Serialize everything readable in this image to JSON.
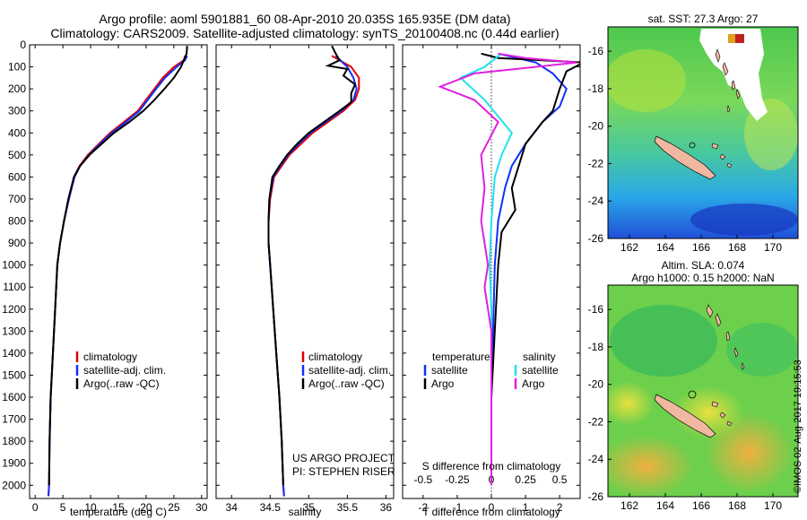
{
  "titles": {
    "line1": "Argo profile: aoml 5901881_60 08-Apr-2010 20.035S 165.935E (DM data)",
    "line2": "Climatology: CARS2009. Satellite-adjusted climatology: synTS_20100408.nc (0.44d earlier)"
  },
  "credits": {
    "project": "US ARGO PROJECT",
    "pi": "PI: STEPHEN RISER",
    "stamp": "©IMOS 02-Aug-2017 19:15:53"
  },
  "colors": {
    "climatology": "#e00000",
    "satellite": "#1030ff",
    "argo": "#000000",
    "sat_salinity": "#20e0f0",
    "argo_salinity": "#e020e0"
  },
  "chart_data": [
    {
      "type": "line",
      "id": "temperature",
      "xlabel": "temperature (deg C)",
      "xlim": [
        -1,
        31
      ],
      "xticks": [
        0,
        5,
        10,
        15,
        20,
        25,
        30
      ],
      "ylim": [
        0,
        2060
      ],
      "yticks": [
        0,
        100,
        200,
        300,
        400,
        500,
        600,
        700,
        800,
        900,
        1000,
        1100,
        1200,
        1300,
        1400,
        1500,
        1600,
        1700,
        1800,
        1900,
        2000
      ],
      "legend": [
        "climatology",
        "satellite-adj. clim.",
        "Argo(..raw -QC)"
      ],
      "series": [
        {
          "name": "climatology",
          "color": "#e00000",
          "points": [
            [
              27.0,
              50
            ],
            [
              26.8,
              70
            ],
            [
              25.0,
              100
            ],
            [
              23.0,
              150
            ],
            [
              21.5,
              200
            ],
            [
              20.0,
              250
            ],
            [
              18.5,
              300
            ],
            [
              16.0,
              350
            ],
            [
              13.5,
              400
            ],
            [
              11.5,
              450
            ],
            [
              9.5,
              500
            ],
            [
              8.0,
              550
            ],
            [
              7.0,
              600
            ],
            [
              6.0,
              700
            ],
            [
              5.2,
              800
            ],
            [
              4.5,
              900
            ],
            [
              4.0,
              1000
            ],
            [
              3.6,
              1200
            ],
            [
              3.2,
              1400
            ],
            [
              2.8,
              1600
            ],
            [
              2.6,
              1800
            ],
            [
              2.5,
              2000
            ],
            [
              2.4,
              2050
            ]
          ]
        },
        {
          "name": "satellite-adj. clim.",
          "color": "#1030ff",
          "points": [
            [
              27.4,
              50
            ],
            [
              27.0,
              70
            ],
            [
              25.5,
              100
            ],
            [
              23.4,
              150
            ],
            [
              21.8,
              200
            ],
            [
              20.3,
              250
            ],
            [
              18.8,
              300
            ],
            [
              16.4,
              350
            ],
            [
              13.8,
              400
            ],
            [
              11.7,
              450
            ],
            [
              9.7,
              500
            ],
            [
              8.1,
              550
            ],
            [
              7.1,
              600
            ],
            [
              6.1,
              700
            ],
            [
              5.2,
              800
            ],
            [
              4.5,
              900
            ],
            [
              4.0,
              1000
            ],
            [
              3.6,
              1200
            ],
            [
              3.2,
              1400
            ],
            [
              2.8,
              1600
            ],
            [
              2.6,
              1800
            ],
            [
              2.5,
              2000
            ],
            [
              2.4,
              2050
            ]
          ]
        },
        {
          "name": "Argo(..raw -QC)",
          "color": "#000000",
          "points": [
            [
              27.4,
              5
            ],
            [
              27.3,
              40
            ],
            [
              26.8,
              70
            ],
            [
              26.3,
              100
            ],
            [
              25.0,
              150
            ],
            [
              23.3,
              200
            ],
            [
              21.5,
              250
            ],
            [
              19.5,
              300
            ],
            [
              17.0,
              350
            ],
            [
              14.2,
              400
            ],
            [
              12.0,
              450
            ],
            [
              9.8,
              500
            ],
            [
              8.1,
              550
            ],
            [
              7.0,
              600
            ],
            [
              6.0,
              700
            ],
            [
              5.2,
              800
            ],
            [
              4.5,
              900
            ],
            [
              4.0,
              1000
            ],
            [
              3.6,
              1200
            ],
            [
              3.2,
              1400
            ],
            [
              2.8,
              1600
            ],
            [
              2.6,
              1800
            ],
            [
              2.5,
              2000
            ]
          ]
        }
      ]
    },
    {
      "type": "line",
      "id": "salinity",
      "xlabel": "salinity",
      "xlim": [
        33.8,
        36.1
      ],
      "xticks": [
        34,
        34.5,
        35,
        35.5,
        36
      ],
      "ylim": [
        0,
        2060
      ],
      "legend": [
        "climatology",
        "satellite-adj. clim.",
        "Argo(..raw -QC)"
      ],
      "series": [
        {
          "name": "climatology",
          "color": "#e00000",
          "points": [
            [
              35.3,
              50
            ],
            [
              35.55,
              100
            ],
            [
              35.65,
              150
            ],
            [
              35.65,
              200
            ],
            [
              35.6,
              250
            ],
            [
              35.45,
              300
            ],
            [
              35.25,
              350
            ],
            [
              35.05,
              400
            ],
            [
              34.9,
              450
            ],
            [
              34.75,
              500
            ],
            [
              34.65,
              550
            ],
            [
              34.55,
              600
            ],
            [
              34.5,
              700
            ],
            [
              34.48,
              800
            ],
            [
              34.48,
              900
            ],
            [
              34.5,
              1000
            ],
            [
              34.54,
              1200
            ],
            [
              34.58,
              1400
            ],
            [
              34.62,
              1600
            ],
            [
              34.65,
              1800
            ],
            [
              34.67,
              2000
            ],
            [
              34.68,
              2050
            ]
          ]
        },
        {
          "name": "satellite-adj. clim.",
          "color": "#1030ff",
          "points": [
            [
              35.35,
              50
            ],
            [
              35.5,
              100
            ],
            [
              35.58,
              150
            ],
            [
              35.62,
              200
            ],
            [
              35.58,
              250
            ],
            [
              35.42,
              300
            ],
            [
              35.22,
              350
            ],
            [
              35.02,
              400
            ],
            [
              34.87,
              450
            ],
            [
              34.73,
              500
            ],
            [
              34.63,
              550
            ],
            [
              34.54,
              600
            ],
            [
              34.49,
              700
            ],
            [
              34.48,
              800
            ],
            [
              34.48,
              900
            ],
            [
              34.5,
              1000
            ],
            [
              34.54,
              1200
            ],
            [
              34.58,
              1400
            ],
            [
              34.62,
              1600
            ],
            [
              34.65,
              1800
            ],
            [
              34.67,
              2000
            ],
            [
              34.68,
              2050
            ]
          ]
        },
        {
          "name": "Argo(..raw -QC)",
          "color": "#000000",
          "points": [
            [
              35.3,
              5
            ],
            [
              35.35,
              40
            ],
            [
              35.4,
              70
            ],
            [
              35.25,
              95
            ],
            [
              35.5,
              110
            ],
            [
              35.45,
              140
            ],
            [
              35.6,
              180
            ],
            [
              35.55,
              220
            ],
            [
              35.55,
              260
            ],
            [
              35.4,
              300
            ],
            [
              35.2,
              350
            ],
            [
              35.0,
              400
            ],
            [
              34.85,
              450
            ],
            [
              34.72,
              500
            ],
            [
              34.62,
              550
            ],
            [
              34.53,
              600
            ],
            [
              34.49,
              700
            ],
            [
              34.48,
              800
            ],
            [
              34.48,
              900
            ],
            [
              34.5,
              1000
            ],
            [
              34.54,
              1200
            ],
            [
              34.58,
              1400
            ],
            [
              34.62,
              1600
            ],
            [
              34.65,
              1800
            ],
            [
              34.67,
              2000
            ]
          ]
        }
      ]
    },
    {
      "type": "line",
      "id": "differences",
      "xlabel": "T difference from climatology",
      "xlim": [
        -2.6,
        2.6
      ],
      "xticks": [
        -2,
        -1,
        0,
        1,
        2
      ],
      "top_xlabel": "S difference from climatology",
      "top_xticks": [
        -0.5,
        -0.25,
        0,
        0.25,
        0.5
      ],
      "ylim": [
        0,
        2060
      ],
      "legend_temperature": {
        "title": "temperature",
        "items": [
          "satellite",
          "Argo"
        ]
      },
      "legend_salinity": {
        "title": "salinity",
        "items": [
          "satellite",
          "Argo"
        ]
      },
      "series": [
        {
          "name": "satellite (T)",
          "color": "#1030ff",
          "points": [
            [
              0.2,
              40
            ],
            [
              1.3,
              80
            ],
            [
              1.8,
              130
            ],
            [
              2.2,
              200
            ],
            [
              2.0,
              280
            ],
            [
              1.5,
              350
            ],
            [
              1.0,
              450
            ],
            [
              0.6,
              550
            ],
            [
              0.4,
              650
            ],
            [
              0.2,
              800
            ],
            [
              0.1,
              1000
            ],
            [
              0.05,
              1300
            ],
            [
              0.0,
              1600
            ],
            [
              0.0,
              2000
            ]
          ]
        },
        {
          "name": "Argo (T)",
          "color": "#000000",
          "points": [
            [
              -0.3,
              40
            ],
            [
              0.2,
              60
            ],
            [
              1.5,
              70
            ],
            [
              2.7,
              80
            ],
            [
              2.2,
              120
            ],
            [
              2.0,
              200
            ],
            [
              1.8,
              300
            ],
            [
              1.5,
              350
            ],
            [
              1.0,
              450
            ],
            [
              0.8,
              550
            ],
            [
              0.6,
              650
            ],
            [
              0.7,
              750
            ],
            [
              0.3,
              850
            ],
            [
              0.2,
              1000
            ],
            [
              0.1,
              1300
            ],
            [
              0.0,
              1600
            ],
            [
              0.0,
              2000
            ]
          ]
        },
        {
          "name": "satellite (S)",
          "color": "#20e0f0",
          "points": [
            [
              0.3,
              40
            ],
            [
              -0.2,
              100
            ],
            [
              -0.9,
              150
            ],
            [
              -0.2,
              250
            ],
            [
              0.6,
              400
            ],
            [
              0.3,
              500
            ],
            [
              0.1,
              600
            ],
            [
              0.0,
              800
            ],
            [
              -0.05,
              1000
            ],
            [
              0.0,
              1200
            ],
            [
              0.0,
              1500
            ],
            [
              0.0,
              2000
            ]
          ]
        },
        {
          "name": "Argo (S)",
          "color": "#e020e0",
          "points": [
            [
              0.2,
              40
            ],
            [
              1.0,
              60
            ],
            [
              2.5,
              80
            ],
            [
              -0.5,
              130
            ],
            [
              -1.5,
              190
            ],
            [
              -0.5,
              250
            ],
            [
              0.2,
              350
            ],
            [
              -0.3,
              500
            ],
            [
              -0.2,
              650
            ],
            [
              -0.3,
              800
            ],
            [
              -0.1,
              1000
            ],
            [
              -0.2,
              1100
            ],
            [
              0.0,
              1300
            ],
            [
              0.0,
              1600
            ],
            [
              0.0,
              2000
            ]
          ]
        }
      ]
    },
    {
      "type": "heatmap",
      "id": "sst_map",
      "title": "sat. SST: 27.3  Argo: 27",
      "xlim": [
        160.8,
        171.4
      ],
      "ylim": [
        -26,
        -14.7
      ],
      "xticks": [
        162,
        164,
        166,
        168,
        170
      ],
      "yticks": [
        -16,
        -18,
        -20,
        -22,
        -24,
        -26
      ]
    },
    {
      "type": "heatmap",
      "id": "sla_map",
      "title_line1": "Altim. SLA: 0.074",
      "title_line2": "Argo h1000: 0.15 h2000: NaN",
      "xlim": [
        160.8,
        171.4
      ],
      "ylim": [
        -26,
        -14.7
      ],
      "xticks": [
        162,
        164,
        166,
        168,
        170
      ],
      "yticks": [
        -16,
        -18,
        -20,
        -22,
        -24,
        -26
      ]
    }
  ]
}
